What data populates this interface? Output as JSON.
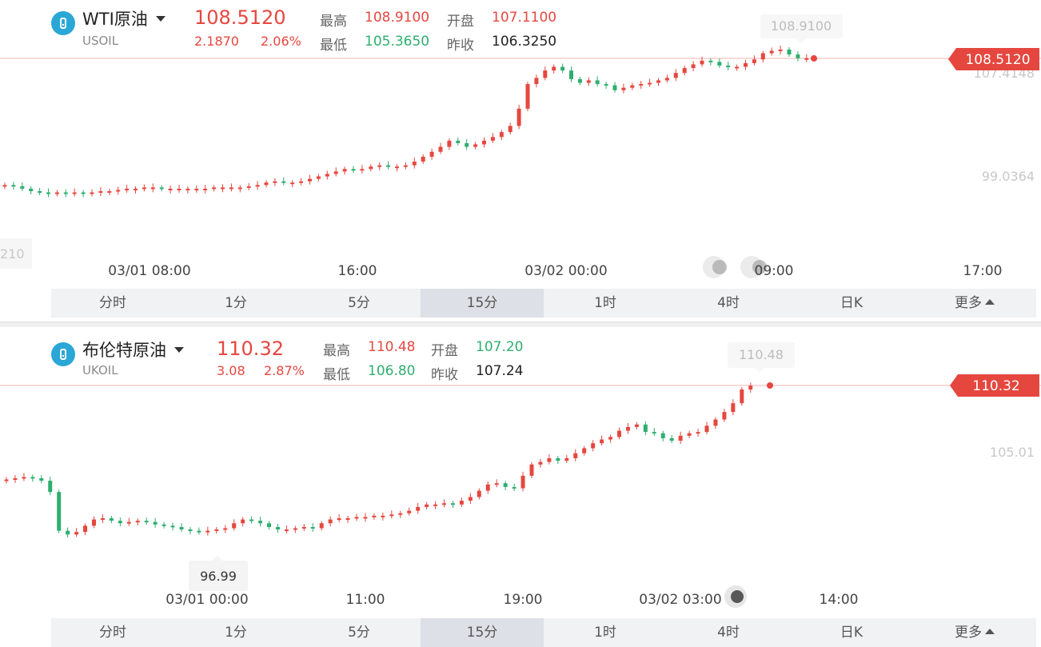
{
  "colors": {
    "up": "#e5473f",
    "down": "#2fae6f",
    "axis_text": "#c8c8c8",
    "time_text": "#444444",
    "price_tag": "#e5473f",
    "icon": "#2aa7d6"
  },
  "panel_wti": {
    "icon": "quote-logo-icon",
    "name": "WTI原油",
    "code": "USOIL",
    "price": "108.5120",
    "change": "2.1870",
    "change_pct": "2.06%",
    "high_label": "最高",
    "high": "108.9100",
    "open_label": "开盘",
    "open": "107.1100",
    "low_label": "最低",
    "low": "105.3650",
    "prev_label": "昨收",
    "prev": "106.3250",
    "current_tag": "108.5120",
    "peak_tag": "108.9100",
    "y_labels": [
      "107.4148",
      "99.0364",
      "210"
    ],
    "x_labels": [
      "03/01 08:00",
      "16:00",
      "03/02 00:00",
      "09:00",
      "17:00"
    ],
    "tabs": [
      "分时",
      "1分",
      "5分",
      "15分",
      "1时",
      "4时",
      "日K",
      "更多"
    ],
    "active_tab": "15分"
  },
  "panel_brent": {
    "icon": "quote-logo-icon",
    "name": "布伦特原油",
    "code": "UKOIL",
    "price": "110.32",
    "change": "3.08",
    "change_pct": "2.87%",
    "high_label": "最高",
    "high": "110.48",
    "open_label": "开盘",
    "open": "107.20",
    "low_label": "最低",
    "low": "106.80",
    "prev_label": "昨收",
    "prev": "107.24",
    "current_tag": "110.32",
    "peak_tag": "110.48",
    "low_tag": "96.99",
    "y_labels": [
      "105.01"
    ],
    "x_labels": [
      "03/01 00:00",
      "11:00",
      "19:00",
      "03/02 03:00",
      "14:00"
    ],
    "tabs": [
      "分时",
      "1分",
      "5分",
      "15分",
      "1时",
      "4时",
      "日K",
      "更多"
    ],
    "active_tab": "15分"
  },
  "chart_data": [
    {
      "type": "candlestick",
      "series": [
        {
          "name": "USOIL",
          "values": [
            98.3,
            98.2,
            98.0,
            97.8,
            97.7,
            97.6,
            97.7,
            97.6,
            97.7,
            97.6,
            97.7,
            97.8,
            97.8,
            97.9,
            98.0,
            98.0,
            98.1,
            98.1,
            98.0,
            98.0,
            98.0,
            98.0,
            98.0,
            98.0,
            98.1,
            98.1,
            98.1,
            98.1,
            98.2,
            98.3,
            98.5,
            98.6,
            98.5,
            98.5,
            98.6,
            98.8,
            99.0,
            99.2,
            99.4,
            99.6,
            99.5,
            99.6,
            99.8,
            99.9,
            99.8,
            99.8,
            99.9,
            100.2,
            100.6,
            101.0,
            101.4,
            101.9,
            101.7,
            101.4,
            101.6,
            101.9,
            102.2,
            102.6,
            103.1,
            104.5,
            106.5,
            107.0,
            107.6,
            107.9,
            107.6,
            106.9,
            106.6,
            106.8,
            106.5,
            106.4,
            106.0,
            106.2,
            106.4,
            106.5,
            106.6,
            106.8,
            107.0,
            107.4,
            107.8,
            108.1,
            108.4,
            108.3,
            108.0,
            107.9,
            107.9,
            108.2,
            108.5,
            109.0,
            109.2,
            109.3,
            108.9,
            108.6,
            108.6
          ]
        }
      ]
    },
    {
      "type": "candlestick",
      "series": [
        {
          "name": "UKOIL",
          "values": [
            102.8,
            102.9,
            103.0,
            102.9,
            102.7,
            101.8,
            98.7,
            98.4,
            98.6,
            99.1,
            99.6,
            99.7,
            99.5,
            99.3,
            99.4,
            99.5,
            99.4,
            99.2,
            99.1,
            99.0,
            98.8,
            98.7,
            98.6,
            98.7,
            98.8,
            98.9,
            99.3,
            99.6,
            99.5,
            99.3,
            99.0,
            98.8,
            98.8,
            98.9,
            99.0,
            98.9,
            99.3,
            99.6,
            99.7,
            99.7,
            99.8,
            99.8,
            99.9,
            99.9,
            100.0,
            100.1,
            100.3,
            100.6,
            100.8,
            100.8,
            100.9,
            100.8,
            101.1,
            101.4,
            101.9,
            102.4,
            102.5,
            102.2,
            102.1,
            103.1,
            104.0,
            104.2,
            104.5,
            104.3,
            104.5,
            104.9,
            105.3,
            105.7,
            106.0,
            106.2,
            106.7,
            107.0,
            107.2,
            106.6,
            106.5,
            106.1,
            105.9,
            106.3,
            106.5,
            106.6,
            107.1,
            107.6,
            108.2,
            108.9,
            110.0,
            110.3
          ]
        }
      ]
    }
  ]
}
